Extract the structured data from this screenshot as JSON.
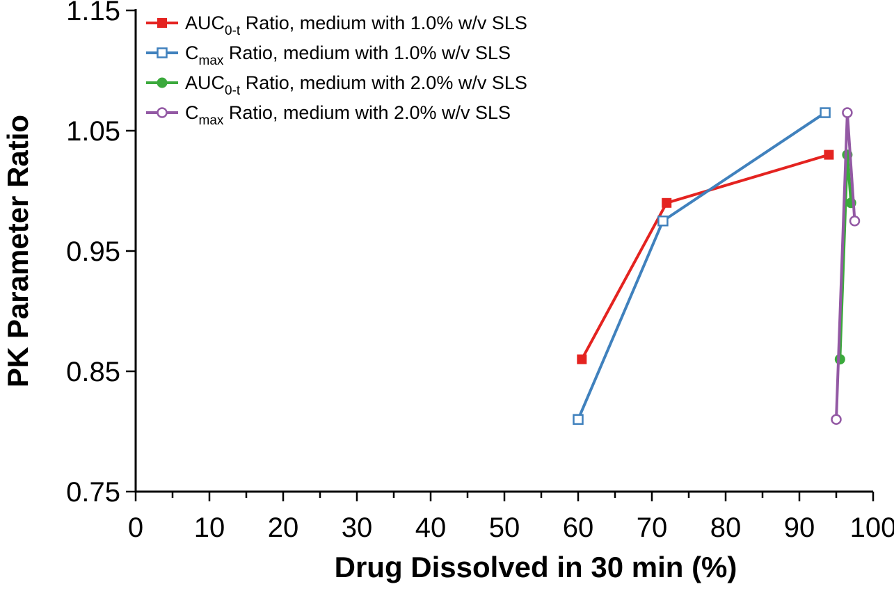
{
  "chart_data": {
    "type": "line",
    "title": "",
    "xlabel": "Drug Dissolved in 30 min (%)",
    "ylabel": "PK Parameter Ratio",
    "xlim": [
      0,
      100
    ],
    "ylim": [
      0.75,
      1.15
    ],
    "x_ticks": [
      0,
      10,
      20,
      30,
      40,
      50,
      60,
      70,
      80,
      90,
      100
    ],
    "x_minor_step": 5,
    "y_ticks": [
      0.75,
      0.85,
      0.95,
      1.05,
      1.15
    ],
    "y_tick_labels": [
      "0.75",
      "0.85",
      "0.95",
      "1.05",
      "1.15"
    ],
    "grid": false,
    "legend_position": "top-left",
    "axis_color": "#000000",
    "series": [
      {
        "name": "AUC0-t Ratio, medium with 1.0% w/v SLS",
        "label_parts": {
          "pre": "AUC",
          "sub": "0-t",
          "post": " Ratio, medium with 1.0% w/v SLS"
        },
        "color": "#e42320",
        "marker": "square-filled",
        "points": [
          [
            60.5,
            0.86
          ],
          [
            72,
            0.99
          ],
          [
            94,
            1.03
          ]
        ]
      },
      {
        "name": "Cmax Ratio, medium with 1.0% w/v SLS",
        "label_parts": {
          "pre": "C",
          "sub": "max",
          "post": " Ratio, medium with 1.0% w/v SLS"
        },
        "color": "#4081bd",
        "marker": "square-open",
        "points": [
          [
            60,
            0.81
          ],
          [
            71.5,
            0.975
          ],
          [
            93.5,
            1.065
          ]
        ]
      },
      {
        "name": "AUC0-t Ratio, medium with 2.0% w/v SLS",
        "label_parts": {
          "pre": "AUC",
          "sub": "0-t",
          "post": " Ratio, medium with 2.0% w/v SLS"
        },
        "color": "#3ba93c",
        "marker": "circle-filled",
        "points": [
          [
            95.5,
            0.86
          ],
          [
            96.5,
            1.03
          ],
          [
            97,
            0.99
          ]
        ]
      },
      {
        "name": "Cmax Ratio, medium with 2.0% w/v SLS",
        "label_parts": {
          "pre": "C",
          "sub": "max",
          "post": " Ratio, medium with 2.0% w/v SLS"
        },
        "color": "#9359a4",
        "marker": "circle-open",
        "points": [
          [
            95,
            0.81
          ],
          [
            96.5,
            1.065
          ],
          [
            97.5,
            0.975
          ]
        ]
      }
    ]
  }
}
